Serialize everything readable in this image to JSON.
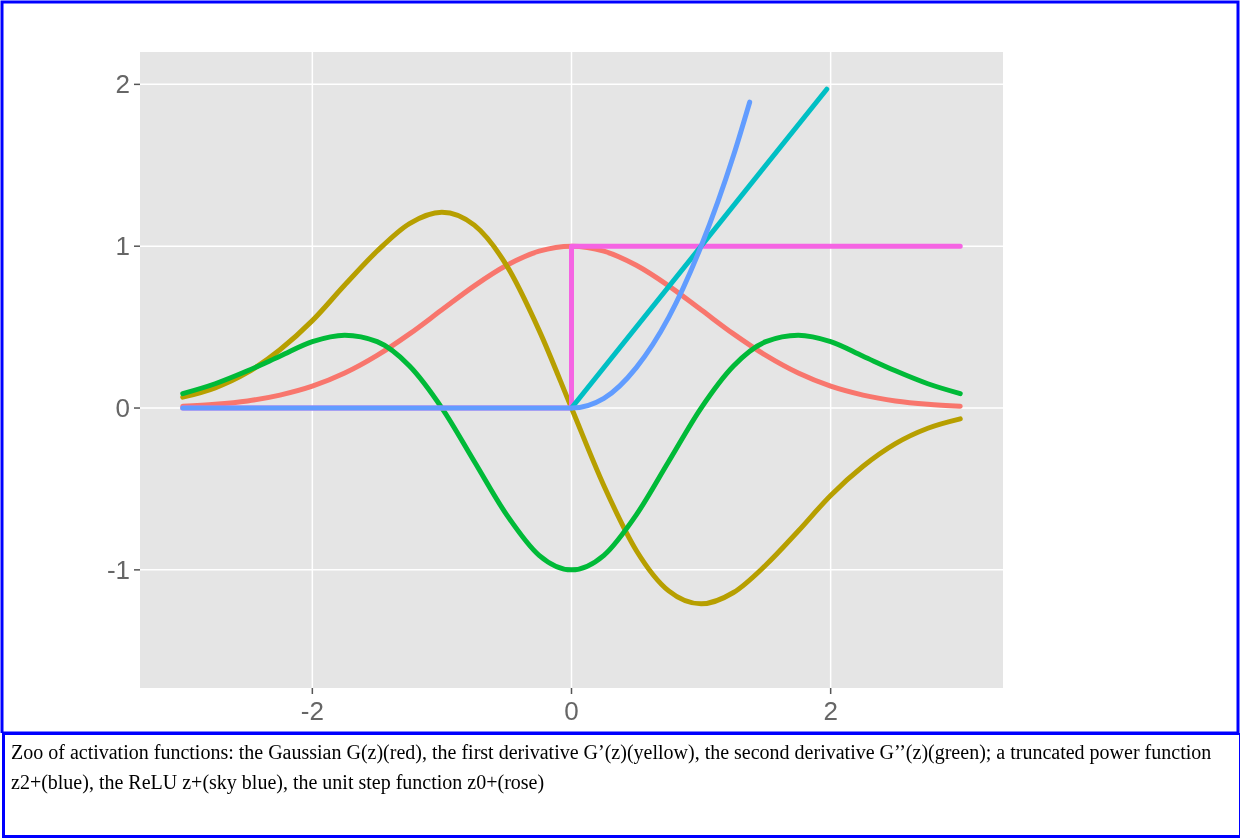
{
  "chart_data": {
    "type": "line",
    "xlim": [
      -3.33,
      3.33
    ],
    "ylim": [
      -1.73,
      2.2
    ],
    "xticks": [
      -2,
      0,
      2
    ],
    "yticks": [
      -1,
      0,
      1,
      2
    ],
    "grid": true,
    "line_style": "solid",
    "marker": "none",
    "annotations": [
      "Zoo of activation functions: the Gaussian G(z)(red), the first derivative G’(z)(yellow), the second derivative G’’(z)(green); a truncated power function z2+(blue), the ReLU z+(sky blue), the unit step function z0+(rose)"
    ],
    "series": [
      {
        "color": "#f8766d",
        "x": [
          -3,
          -2.75,
          -2.5,
          -2.25,
          -2,
          -1.75,
          -1.5,
          -1.25,
          -1,
          -0.75,
          -0.5,
          -0.25,
          0,
          0.25,
          0.5,
          0.75,
          1,
          1.25,
          1.5,
          1.75,
          2,
          2.25,
          2.5,
          2.75,
          3
        ],
        "values": [
          0.011,
          0.023,
          0.044,
          0.08,
          0.135,
          0.216,
          0.325,
          0.458,
          0.607,
          0.755,
          0.882,
          0.969,
          1,
          0.969,
          0.882,
          0.755,
          0.607,
          0.458,
          0.325,
          0.216,
          0.135,
          0.08,
          0.044,
          0.023,
          0.011
        ]
      },
      {
        "color": "#b79f00",
        "x": [
          -3,
          -2.75,
          -2.5,
          -2.25,
          -2,
          -1.75,
          -1.5,
          -1.25,
          -1,
          -0.75,
          -0.5,
          -0.25,
          0,
          0.25,
          0.5,
          0.75,
          1,
          1.25,
          1.5,
          1.75,
          2,
          2.25,
          2.5,
          2.75,
          3
        ],
        "values": [
          0.067,
          0.125,
          0.22,
          0.36,
          0.54,
          0.76,
          0.97,
          1.14,
          1.21,
          1.13,
          0.88,
          0.48,
          0,
          -0.48,
          -0.88,
          -1.13,
          -1.21,
          -1.14,
          -0.97,
          -0.76,
          -0.54,
          -0.36,
          -0.22,
          -0.125,
          -0.067
        ]
      },
      {
        "color": "#00ba38",
        "x": [
          -3,
          -2.75,
          -2.5,
          -2.25,
          -2,
          -1.75,
          -1.5,
          -1.25,
          -1,
          -0.75,
          -0.5,
          -0.25,
          0,
          0.25,
          0.5,
          0.75,
          1,
          1.25,
          1.5,
          1.75,
          2,
          2.25,
          2.5,
          2.75,
          3
        ],
        "values": [
          0.089,
          0.15,
          0.23,
          0.32,
          0.41,
          0.45,
          0.41,
          0.26,
          0,
          -0.33,
          -0.66,
          -0.91,
          -1,
          -0.91,
          -0.66,
          -0.33,
          0,
          0.26,
          0.41,
          0.45,
          0.41,
          0.32,
          0.23,
          0.15,
          0.089
        ]
      },
      {
        "type": "step",
        "color": "#f564e3",
        "x": [
          -3,
          0,
          3
        ],
        "values": [
          0,
          1,
          1
        ]
      },
      {
        "color": "#00bfc4",
        "x": [
          0,
          1.97
        ],
        "values": [
          0,
          1.97
        ]
      },
      {
        "color": "#619cff",
        "x": [
          -3,
          0,
          0.25,
          0.5,
          0.75,
          1,
          1.25,
          1.375
        ],
        "values": [
          0,
          0,
          0.06,
          0.25,
          0.56,
          1,
          1.56,
          1.89
        ]
      }
    ]
  }
}
